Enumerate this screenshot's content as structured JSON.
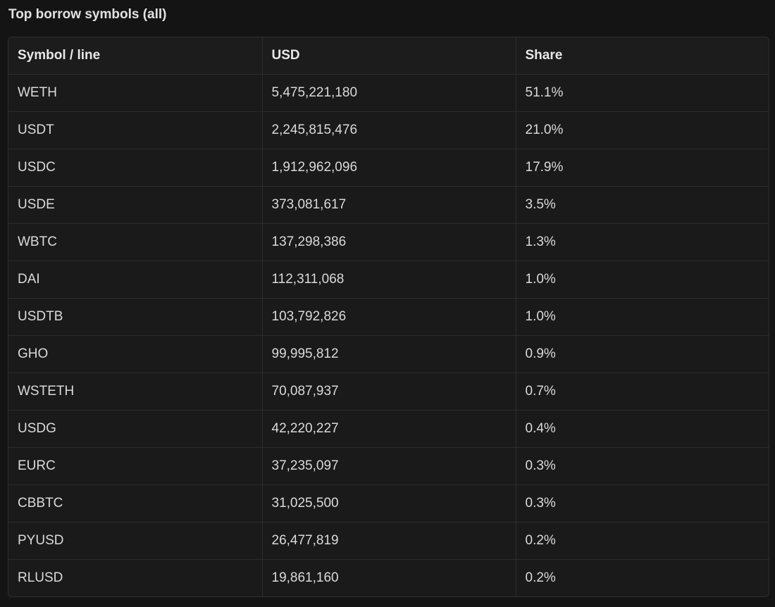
{
  "title": "Top borrow symbols (all)",
  "table": {
    "headers": [
      "Symbol / line",
      "USD",
      "Share"
    ],
    "rows": [
      {
        "symbol": "WETH",
        "usd": "5,475,221,180",
        "share": "51.1%"
      },
      {
        "symbol": "USDT",
        "usd": "2,245,815,476",
        "share": "21.0%"
      },
      {
        "symbol": "USDC",
        "usd": "1,912,962,096",
        "share": "17.9%"
      },
      {
        "symbol": "USDE",
        "usd": "373,081,617",
        "share": "3.5%"
      },
      {
        "symbol": "WBTC",
        "usd": "137,298,386",
        "share": "1.3%"
      },
      {
        "symbol": "DAI",
        "usd": "112,311,068",
        "share": "1.0%"
      },
      {
        "symbol": "USDTB",
        "usd": "103,792,826",
        "share": "1.0%"
      },
      {
        "symbol": "GHO",
        "usd": "99,995,812",
        "share": "0.9%"
      },
      {
        "symbol": "WSTETH",
        "usd": "70,087,937",
        "share": "0.7%"
      },
      {
        "symbol": "USDG",
        "usd": "42,220,227",
        "share": "0.4%"
      },
      {
        "symbol": "EURC",
        "usd": "37,235,097",
        "share": "0.3%"
      },
      {
        "symbol": "CBBTC",
        "usd": "31,025,500",
        "share": "0.3%"
      },
      {
        "symbol": "PYUSD",
        "usd": "26,477,819",
        "share": "0.2%"
      },
      {
        "symbol": "RLUSD",
        "usd": "19,861,160",
        "share": "0.2%"
      }
    ]
  }
}
